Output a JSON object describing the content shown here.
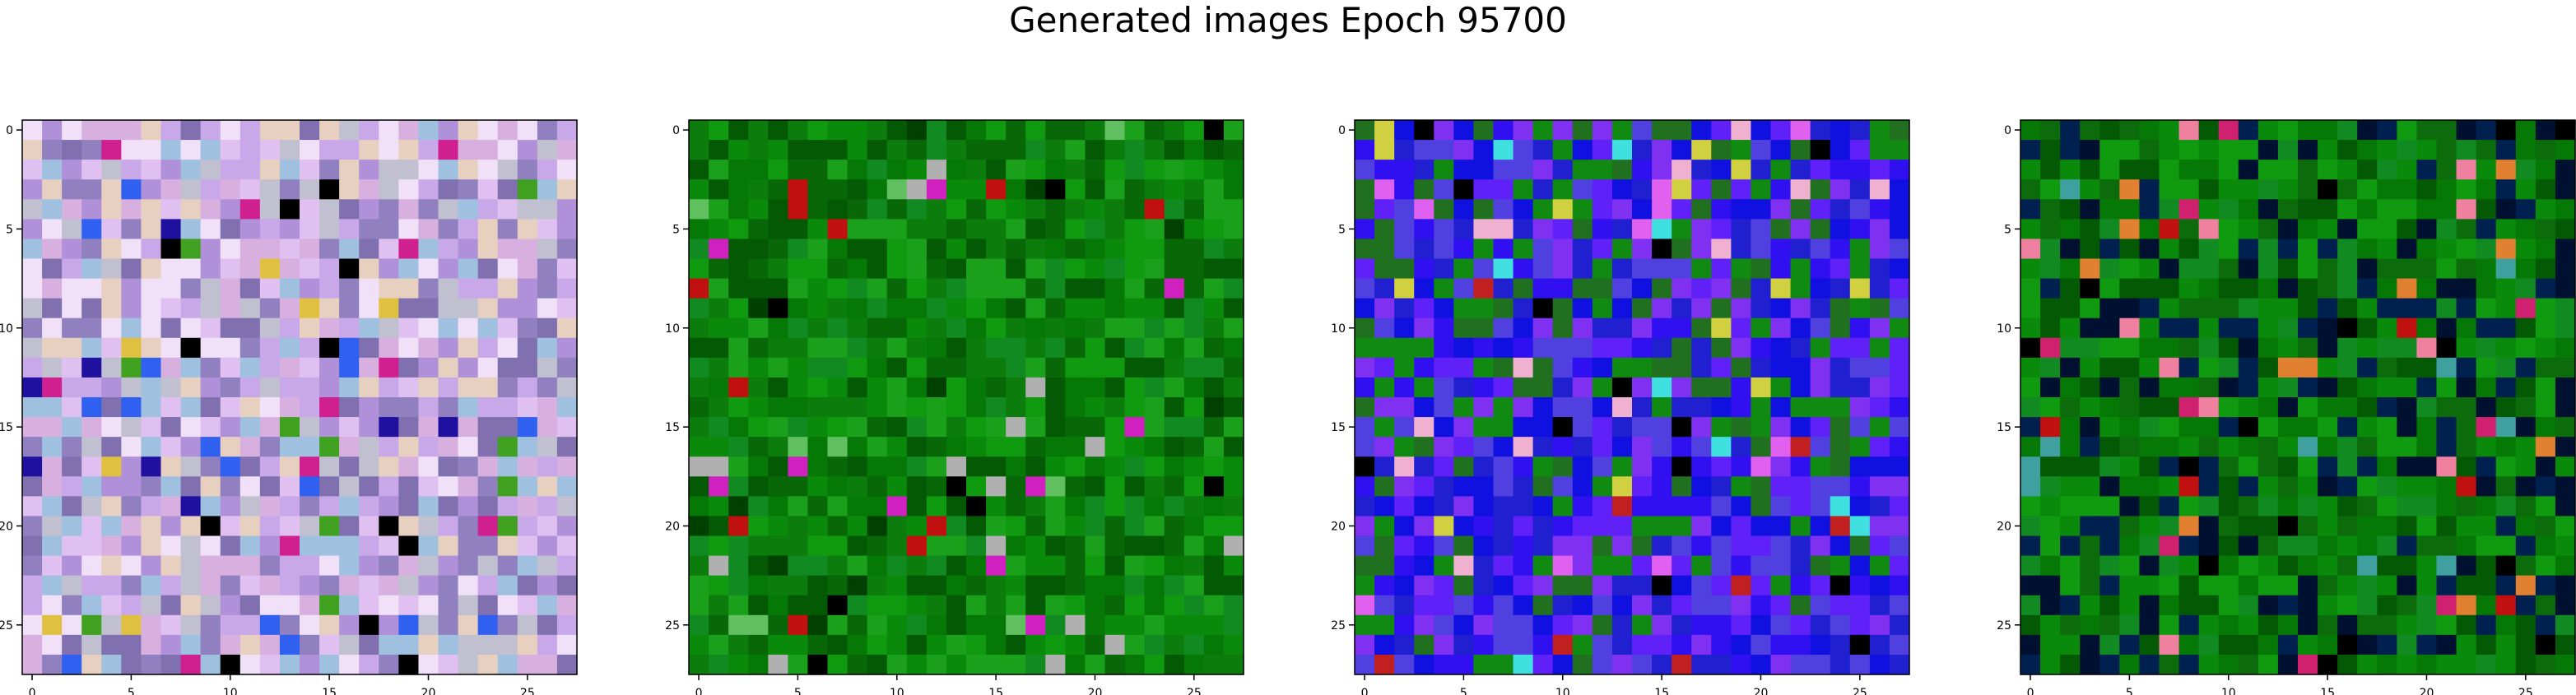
{
  "figure": {
    "title": "Generated images Epoch 95700"
  },
  "chart_data": [
    {
      "type": "heatmap",
      "title": "",
      "xlabel": "",
      "ylabel": "",
      "grid_size": 28,
      "xlim": [
        -0.5,
        27.5
      ],
      "ylim": [
        27.5,
        -0.5
      ],
      "xticks": [
        0,
        5,
        10,
        15,
        20,
        25
      ],
      "yticks": [
        0,
        5,
        10,
        15,
        20,
        25
      ],
      "grid": false,
      "palette": [
        "#c8a8e8",
        "#e0c0f0",
        "#b090d8",
        "#f0e0f8",
        "#9080c0",
        "#d8b0e0",
        "#a0c0e0",
        "#8070b0",
        "#c0c0d0",
        "#e8d0c0"
      ],
      "accents": [
        "#2010a0",
        "#000000",
        "#d02090",
        "#3060f0",
        "#e0c040",
        "#40a020"
      ]
    },
    {
      "type": "heatmap",
      "title": "",
      "xlabel": "",
      "ylabel": "",
      "grid_size": 28,
      "xlim": [
        -0.5,
        27.5
      ],
      "ylim": [
        27.5,
        -0.5
      ],
      "xticks": [
        0,
        5,
        10,
        15,
        20,
        25
      ],
      "yticks": [
        0,
        5,
        10,
        15,
        20,
        25
      ],
      "grid": false,
      "palette": [
        "#0a8a0a",
        "#067806",
        "#109a10",
        "#045a04",
        "#0c7c0c",
        "#128a22",
        "#086808",
        "#1aa01a"
      ],
      "accents": [
        "#c01010",
        "#000000",
        "#b0b0b0",
        "#d020c0",
        "#60c060",
        "#004000"
      ]
    },
    {
      "type": "heatmap",
      "title": "",
      "xlabel": "",
      "ylabel": "",
      "grid_size": 28,
      "xlim": [
        -0.5,
        27.5
      ],
      "ylim": [
        27.5,
        -0.5
      ],
      "xticks": [
        0,
        5,
        10,
        15,
        20,
        25
      ],
      "yticks": [
        0,
        5,
        10,
        15,
        20,
        25
      ],
      "grid": false,
      "palette": [
        "#3010f0",
        "#6020f8",
        "#2020d0",
        "#8030f0",
        "#1010e0",
        "#5040e0",
        "#207020",
        "#108a10"
      ],
      "accents": [
        "#f0b0d0",
        "#40e0e0",
        "#d0d040",
        "#000000",
        "#c02020",
        "#e060f0"
      ]
    },
    {
      "type": "heatmap",
      "title": "",
      "xlabel": "",
      "ylabel": "",
      "grid_size": 28,
      "xlim": [
        -0.5,
        27.5
      ],
      "ylim": [
        27.5,
        -0.5
      ],
      "xticks": [
        0,
        5,
        10,
        15,
        20,
        25
      ],
      "yticks": [
        0,
        5,
        10,
        15,
        20,
        25
      ],
      "grid": false,
      "palette": [
        "#0a8a0a",
        "#067806",
        "#045a04",
        "#109a10",
        "#0c6c0c",
        "#002050",
        "#001030",
        "#128a22"
      ],
      "accents": [
        "#c01010",
        "#e08030",
        "#d02070",
        "#000000",
        "#40a0a0",
        "#f080a0"
      ]
    }
  ]
}
